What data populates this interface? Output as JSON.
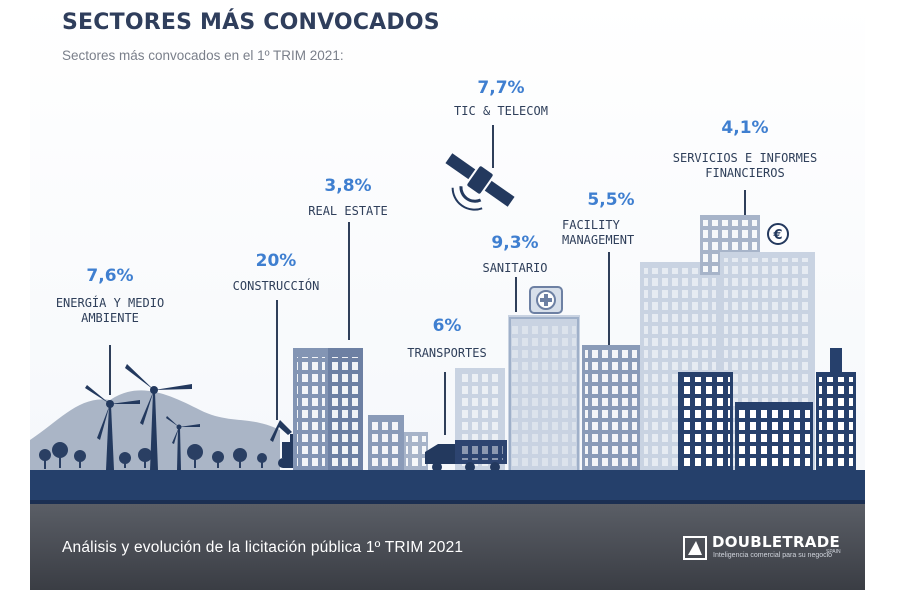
{
  "header": {
    "title": "SECTORES MÁS CONVOCADOS",
    "subtitle": "Sectores más convocados en el 1º TRIM 2021:"
  },
  "sectors": [
    {
      "pct": "7,6%",
      "label": "ENERGÍA Y MEDIO\nAMBIENTE",
      "icon": "wind-turbine-icon"
    },
    {
      "pct": "20%",
      "label": "CONSTRUCCIÓN",
      "icon": "excavator-icon"
    },
    {
      "pct": "3,8%",
      "label": "REAL ESTATE",
      "icon": "office-tower-icon"
    },
    {
      "pct": "6%",
      "label": "TRANSPORTES",
      "icon": "truck-icon"
    },
    {
      "pct": "7,7%",
      "label": "TIC & TELECOM",
      "icon": "satellite-icon"
    },
    {
      "pct": "9,3%",
      "label": "SANITARIO",
      "icon": "hospital-icon"
    },
    {
      "pct": "5,5%",
      "label": "FACILITY\nMANAGEMENT",
      "icon": "building-icon"
    },
    {
      "pct": "4,1%",
      "label": "SERVICIOS E INFORMES\nFINANCIEROS",
      "icon": "euro-icon"
    }
  ],
  "footer": {
    "text": "Análisis y evolución de la licitación pública 1º TRIM 2021",
    "logo_name": "DOUBLETRADE",
    "logo_tagline": "Inteligencia comercial para su negocio",
    "logo_country": "SPAIN"
  },
  "colors": {
    "title": "#2f3e5c",
    "percent": "#3f7fd0",
    "navy": "#26406c",
    "slate": "#8a9bb8",
    "light_building": "#c9d3e2",
    "footer_band": "#4b4f57"
  }
}
